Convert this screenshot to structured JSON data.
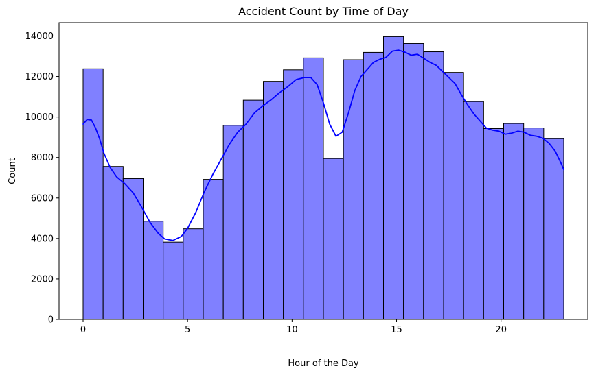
{
  "chart_data": {
    "type": "bar",
    "title": "Accident Count by Time of Day",
    "xlabel": "Hour of the Day",
    "ylabel": "Count",
    "bin_edges": [
      0,
      0.9583,
      1.9167,
      2.875,
      3.8333,
      4.7917,
      5.75,
      6.7083,
      7.6667,
      8.625,
      9.5833,
      10.5417,
      11.5,
      12.4583,
      13.4167,
      14.375,
      15.3333,
      16.2917,
      17.25,
      18.2083,
      19.1667,
      20.125,
      21.0833,
      22.0417,
      23
    ],
    "values": [
      12380,
      7560,
      6960,
      4850,
      3820,
      4480,
      6920,
      9590,
      10830,
      11760,
      12330,
      12920,
      7950,
      12830,
      13190,
      13970,
      13630,
      13220,
      12200,
      10760,
      9430,
      9680,
      9460,
      8930
    ],
    "kde": {
      "x": [
        0,
        0.2,
        0.4,
        0.6,
        0.8,
        1.0,
        1.3,
        1.6,
        2.0,
        2.4,
        2.8,
        3.2,
        3.6,
        3.9,
        4.3,
        4.7,
        5.0,
        5.4,
        5.8,
        6.2,
        6.6,
        7.0,
        7.4,
        7.8,
        8.2,
        8.6,
        9.0,
        9.4,
        9.8,
        10.2,
        10.6,
        10.9,
        11.2,
        11.5,
        11.8,
        12.1,
        12.4,
        12.7,
        13.0,
        13.3,
        13.6,
        13.9,
        14.2,
        14.5,
        14.8,
        15.1,
        15.4,
        15.7,
        16.0,
        16.3,
        16.6,
        16.9,
        17.2,
        17.5,
        17.8,
        18.1,
        18.4,
        18.7,
        19.0,
        19.3,
        19.6,
        19.9,
        20.2,
        20.5,
        20.8,
        21.1,
        21.4,
        21.7,
        22.0,
        22.3,
        22.6,
        22.9,
        23.0
      ],
      "y": [
        9650,
        9880,
        9850,
        9450,
        8900,
        8200,
        7500,
        7050,
        6700,
        6250,
        5550,
        4800,
        4250,
        3980,
        3900,
        4100,
        4500,
        5300,
        6300,
        7150,
        7900,
        8650,
        9250,
        9650,
        10200,
        10550,
        10850,
        11200,
        11500,
        11850,
        11950,
        11950,
        11600,
        10700,
        9650,
        9050,
        9250,
        10200,
        11300,
        12000,
        12350,
        12700,
        12850,
        12950,
        13250,
        13300,
        13200,
        13050,
        13100,
        12900,
        12700,
        12550,
        12250,
        11950,
        11650,
        11100,
        10600,
        10150,
        9800,
        9450,
        9350,
        9300,
        9150,
        9200,
        9300,
        9250,
        9100,
        9050,
        8950,
        8700,
        8300,
        7650,
        7400
      ]
    },
    "xlim": [
      -1.15,
      24.15
    ],
    "ylim": [
      0,
      14660
    ],
    "x_ticks": [
      0,
      5,
      10,
      15,
      20
    ],
    "y_ticks": [
      0,
      2000,
      4000,
      6000,
      8000,
      10000,
      12000,
      14000
    ],
    "grid": false,
    "bar_color": "#8080ff",
    "bar_edge_color": "#000000",
    "kde_color": "#0000ff"
  }
}
